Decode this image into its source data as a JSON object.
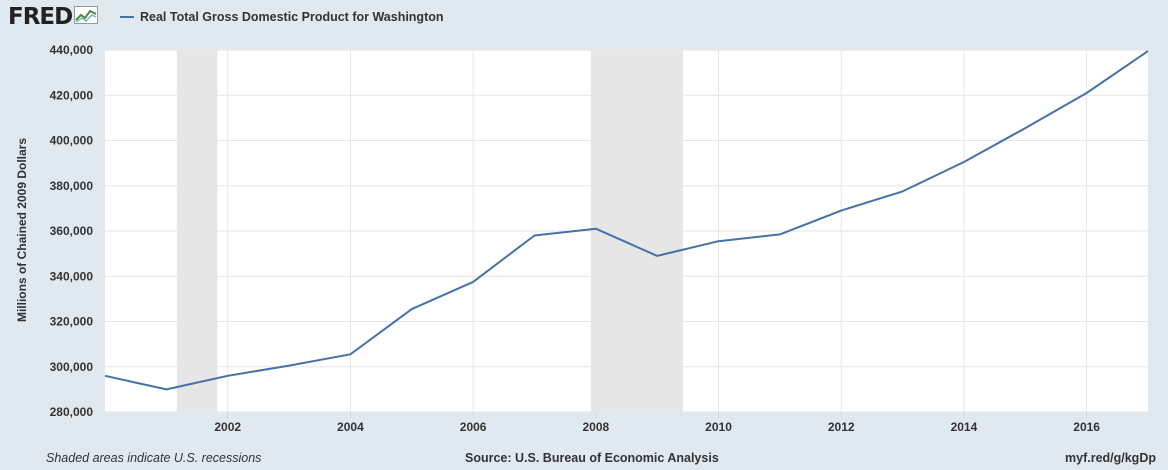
{
  "header": {
    "logo_text": "FRED",
    "logo_icon": "line-chart-icon",
    "series_title": "Real Total Gross Domestic Product for Washington",
    "series_color": "#4572a7"
  },
  "chart_data": {
    "type": "line",
    "title": "Real Total Gross Domestic Product for Washington",
    "ylabel": "Millions of Chained 2009 Dollars",
    "xlabel": "",
    "xlim": [
      2000,
      2017
    ],
    "ylim": [
      280000,
      440000
    ],
    "x_ticks": [
      2002,
      2004,
      2006,
      2008,
      2010,
      2012,
      2014,
      2016
    ],
    "x_tick_labels": [
      "2002",
      "2004",
      "2006",
      "2008",
      "2010",
      "2012",
      "2014",
      "2016"
    ],
    "y_ticks": [
      280000,
      300000,
      320000,
      340000,
      360000,
      380000,
      400000,
      420000,
      440000
    ],
    "y_tick_labels": [
      "280,000",
      "300,000",
      "320,000",
      "340,000",
      "360,000",
      "380,000",
      "400,000",
      "420,000",
      "440,000"
    ],
    "grid": true,
    "series": [
      {
        "name": "Real Total Gross Domestic Product for Washington",
        "color": "#4572a7",
        "x": [
          2000,
          2001,
          2002,
          2003,
          2004,
          2005,
          2006,
          2007,
          2008,
          2009,
          2010,
          2011,
          2012,
          2013,
          2014,
          2015,
          2016,
          2017
        ],
        "values": [
          296000,
          290000,
          296000,
          300500,
          305500,
          325500,
          337500,
          358000,
          361000,
          349000,
          355500,
          358500,
          369000,
          377500,
          390500,
          405500,
          421000,
          439500
        ]
      }
    ],
    "recessions": [
      {
        "start": 2001.17,
        "end": 2001.83
      },
      {
        "start": 2007.92,
        "end": 2009.42
      }
    ],
    "recession_color": "#e6e6e6"
  },
  "footer": {
    "note": "Shaded areas indicate U.S. recessions",
    "source": "Source: U.S. Bureau of Economic Analysis",
    "link": "myf.red/g/kgDp"
  }
}
